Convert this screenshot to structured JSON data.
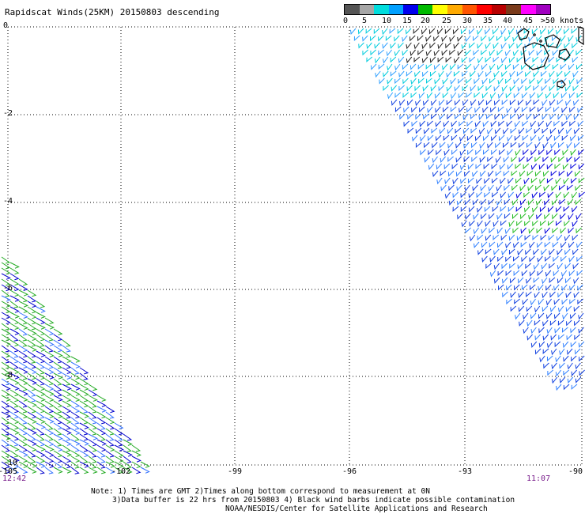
{
  "title": "Rapidscat Winds(25KM) 20150803 descending",
  "legend": {
    "labels": [
      "0",
      "5",
      "10",
      "15",
      "20",
      "25",
      "30",
      "35",
      "40",
      "45",
      ">50 knots"
    ],
    "colors": [
      "#555555",
      "#a6a6a6",
      "#00dddd",
      "#00a0ff",
      "#0000ee",
      "#00bb00",
      "#ffff00",
      "#ffaa00",
      "#ff5500",
      "#ff0000",
      "#b80000",
      "#7a3a1a",
      "#ff00ff",
      "#a000c0"
    ]
  },
  "axes": {
    "y_labels": [
      "0",
      "-2",
      "-4",
      "-6",
      "-8",
      "-10"
    ],
    "x_labels": [
      "-105",
      "-102",
      "-99",
      "-96",
      "-93",
      "-90"
    ]
  },
  "times": {
    "left": "12:42",
    "right": "11:07"
  },
  "notes": [
    "Note: 1) Times are GMT 2)Times along bottom correspond to measurement at 0N",
    "3)Data buffer is 22 hrs from 20150803 4) Black wind barbs indicate possible contamination",
    "NOAA/NESDIS/Center for Satellite Applications and Research"
  ]
}
